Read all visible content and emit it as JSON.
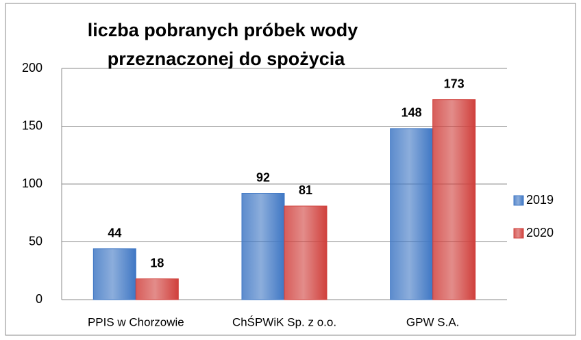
{
  "chart_data": {
    "type": "bar",
    "title": [
      "liczba pobranych próbek wody",
      "przeznaczonej  do spożycia"
    ],
    "categories": [
      "PPIS w Chorzowie",
      "ChŚPWiK Sp. z o.o.",
      "GPW S.A."
    ],
    "series": [
      {
        "name": "2019",
        "color": "#3f77c4",
        "values": [
          44,
          92,
          148
        ]
      },
      {
        "name": "2020",
        "color": "#d0403c",
        "values": [
          18,
          81,
          173
        ]
      }
    ],
    "ylim": [
      0,
      200
    ],
    "yticks": [
      0,
      50,
      100,
      150,
      200
    ],
    "grid": true,
    "legend": "right"
  }
}
